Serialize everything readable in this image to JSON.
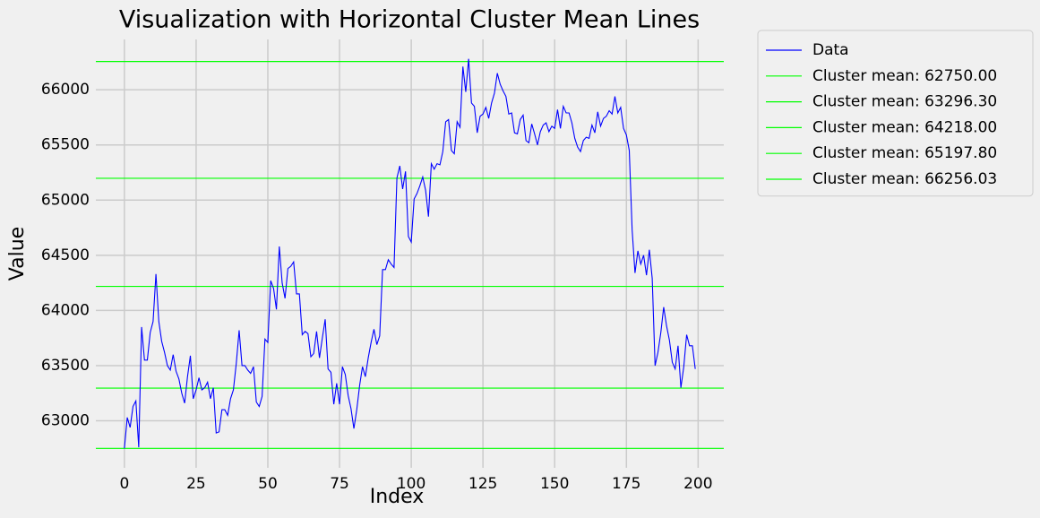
{
  "chart_data": {
    "type": "line",
    "title": "Visualization with Horizontal Cluster Mean Lines",
    "x_label": "Index",
    "y_label": "Value",
    "x": [
      0,
      1,
      2,
      3,
      4,
      5,
      6,
      7,
      8,
      9,
      10,
      11,
      12,
      13,
      14,
      15,
      16,
      17,
      18,
      19,
      20,
      21,
      22,
      23,
      24,
      25,
      26,
      27,
      28,
      29,
      30,
      31,
      32,
      33,
      34,
      35,
      36,
      37,
      38,
      39,
      40,
      41,
      42,
      43,
      44,
      45,
      46,
      47,
      48,
      49,
      50,
      51,
      52,
      53,
      54,
      55,
      56,
      57,
      58,
      59,
      60,
      61,
      62,
      63,
      64,
      65,
      66,
      67,
      68,
      69,
      70,
      71,
      72,
      73,
      74,
      75,
      76,
      77,
      78,
      79,
      80,
      81,
      82,
      83,
      84,
      85,
      86,
      87,
      88,
      89,
      90,
      91,
      92,
      93,
      94,
      95,
      96,
      97,
      98,
      99,
      100,
      101,
      102,
      103,
      104,
      105,
      106,
      107,
      108,
      109,
      110,
      111,
      112,
      113,
      114,
      115,
      116,
      117,
      118,
      119,
      120,
      121,
      122,
      123,
      124,
      125,
      126,
      127,
      128,
      129,
      130,
      131,
      132,
      133,
      134,
      135,
      136,
      137,
      138,
      139,
      140,
      141,
      142,
      143,
      144,
      145,
      146,
      147,
      148,
      149,
      150,
      151,
      152,
      153,
      154,
      155,
      156,
      157,
      158,
      159,
      160,
      161,
      162,
      163,
      164,
      165,
      166,
      167,
      168,
      169,
      170,
      171,
      172,
      173,
      174,
      175,
      176,
      177,
      178,
      179,
      180,
      181,
      182,
      183,
      184,
      185,
      186,
      187,
      188,
      189,
      190,
      191,
      192,
      193,
      194,
      195,
      196,
      197,
      198,
      199
    ],
    "series": [
      {
        "name": "Data",
        "color": "#0000ff",
        "values": [
          62750,
          63030,
          62940,
          63130,
          63180,
          62760,
          63850,
          63550,
          63550,
          63800,
          63900,
          64330,
          63900,
          63720,
          63620,
          63500,
          63460,
          63600,
          63450,
          63380,
          63250,
          63160,
          63400,
          63590,
          63200,
          63280,
          63390,
          63280,
          63300,
          63350,
          63200,
          63300,
          62890,
          62900,
          63100,
          63100,
          63050,
          63200,
          63280,
          63520,
          63820,
          63500,
          63500,
          63460,
          63430,
          63490,
          63170,
          63130,
          63220,
          63740,
          63710,
          64270,
          64200,
          64010,
          64580,
          64250,
          64110,
          64380,
          64400,
          64440,
          64150,
          64150,
          63780,
          63810,
          63790,
          63580,
          63610,
          63810,
          63570,
          63750,
          63920,
          63470,
          63440,
          63150,
          63340,
          63150,
          63490,
          63420,
          63230,
          63110,
          62930,
          63100,
          63320,
          63490,
          63400,
          63570,
          63710,
          63830,
          63690,
          63770,
          64370,
          64370,
          64460,
          64420,
          64390,
          65200,
          65310,
          65100,
          65260,
          64670,
          64620,
          65010,
          65060,
          65130,
          65210,
          65090,
          64850,
          65330,
          65280,
          65330,
          65320,
          65440,
          65710,
          65730,
          65450,
          65420,
          65710,
          65660,
          66210,
          65980,
          66280,
          65880,
          65850,
          65610,
          65760,
          65780,
          65840,
          65740,
          65880,
          65970,
          66150,
          66050,
          65990,
          65940,
          65780,
          65790,
          65610,
          65600,
          65730,
          65770,
          65540,
          65520,
          65690,
          65600,
          65500,
          65620,
          65680,
          65700,
          65620,
          65670,
          65650,
          65820,
          65650,
          65850,
          65790,
          65790,
          65700,
          65560,
          65480,
          65440,
          65540,
          65570,
          65560,
          65680,
          65610,
          65800,
          65670,
          65740,
          65760,
          65810,
          65780,
          65940,
          65790,
          65840,
          65650,
          65590,
          65450,
          64730,
          64340,
          64540,
          64420,
          64500,
          64320,
          64550,
          64290,
          63500,
          63620,
          63800,
          64030,
          63860,
          63730,
          63530,
          63470,
          63680,
          63300,
          63490,
          63780,
          63680,
          63680,
          63470
        ]
      }
    ],
    "hlines": [
      {
        "name": "Cluster mean: 62750.00",
        "value": 62750,
        "color": "#00ff00"
      },
      {
        "name": "Cluster mean: 63296.30",
        "value": 63296.3,
        "color": "#00ff00"
      },
      {
        "name": "Cluster mean: 64218.00",
        "value": 64218,
        "color": "#00ff00"
      },
      {
        "name": "Cluster mean: 65197.80",
        "value": 65197.8,
        "color": "#00ff00"
      },
      {
        "name": "Cluster mean: 66256.03",
        "value": 66256.03,
        "color": "#00ff00"
      }
    ],
    "xlim": [
      -9.95,
      208.95
    ],
    "xticks": [
      0,
      25,
      50,
      75,
      100,
      125,
      150,
      175,
      200
    ],
    "ylim": [
      62574,
      66456
    ],
    "yticks": [
      63000,
      63500,
      64000,
      64500,
      65000,
      65500,
      66000
    ],
    "grid": true,
    "legend": "outside right"
  }
}
